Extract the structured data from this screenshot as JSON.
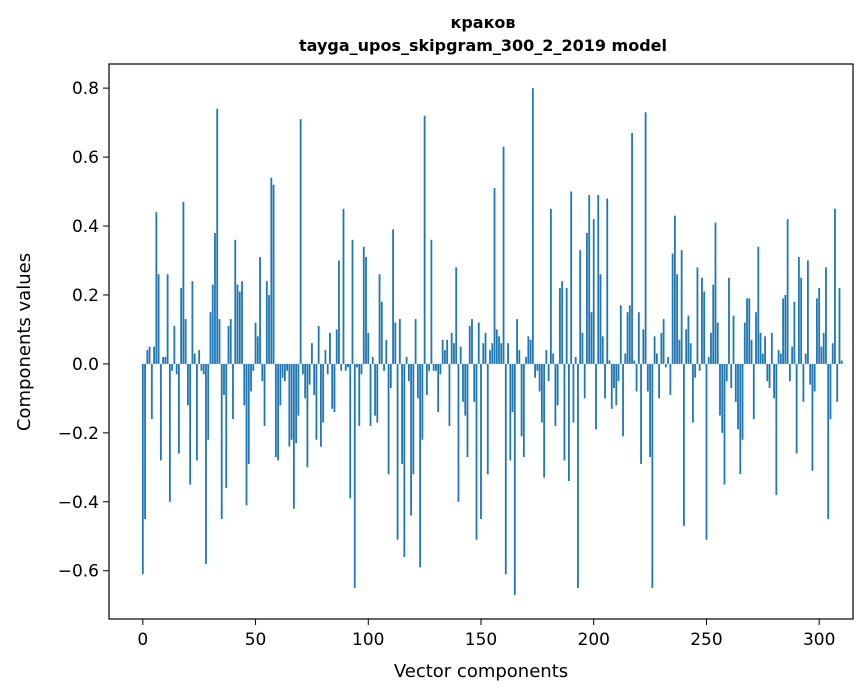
{
  "chart_data": {
    "type": "bar",
    "title": "краков",
    "subtitle": "tayga_upos_skipgram_300_2_2019 model",
    "xlabel": "Vector components",
    "ylabel": "Components values",
    "xlim": [
      -15,
      315
    ],
    "ylim": [
      -0.74,
      0.87
    ],
    "x_ticks": [
      0,
      50,
      100,
      150,
      200,
      250,
      300
    ],
    "y_ticks": [
      -0.6,
      -0.4,
      -0.2,
      0.0,
      0.2,
      0.4,
      0.6,
      0.8
    ],
    "y_tick_labels": [
      "−0.6",
      "−0.4",
      "−0.2",
      "0.0",
      "0.2",
      "0.4",
      "0.6",
      "0.8"
    ],
    "bar_color": "#1f77b4",
    "values": [
      -0.61,
      -0.45,
      0.04,
      0.05,
      -0.16,
      0.05,
      0.44,
      0.26,
      -0.28,
      0.02,
      0.02,
      0.26,
      -0.4,
      -0.02,
      0.11,
      -0.03,
      -0.26,
      0.22,
      0.47,
      0.13,
      -0.12,
      -0.35,
      0.24,
      0.03,
      -0.28,
      0.04,
      -0.02,
      -0.03,
      -0.58,
      -0.22,
      0.15,
      0.23,
      0.38,
      0.74,
      0.13,
      -0.45,
      -0.09,
      -0.36,
      0.11,
      0.13,
      -0.16,
      0.36,
      0.23,
      0.21,
      0.24,
      -0.12,
      -0.41,
      -0.29,
      -0.08,
      -0.02,
      0.12,
      0.08,
      0.31,
      -0.05,
      -0.18,
      0.24,
      0.2,
      0.54,
      0.52,
      -0.27,
      -0.28,
      -0.12,
      -0.04,
      -0.05,
      -0.02,
      -0.24,
      -0.22,
      -0.42,
      -0.23,
      -0.15,
      0.71,
      -0.03,
      -0.1,
      -0.3,
      -0.06,
      0.06,
      -0.09,
      -0.22,
      0.11,
      -0.24,
      -0.17,
      0.04,
      -0.03,
      0.09,
      -0.13,
      -0.14,
      0.1,
      0.3,
      -0.02,
      0.45,
      -0.02,
      -0.01,
      -0.39,
      0.36,
      -0.65,
      -0.01,
      -0.18,
      -0.03,
      0.34,
      0.31,
      0.09,
      -0.18,
      0.02,
      -0.15,
      -0.17,
      0.26,
      0.18,
      -0.02,
      0.07,
      -0.32,
      -0.07,
      0.39,
      0.12,
      -0.51,
      0.13,
      -0.29,
      -0.56,
      0.02,
      -0.05,
      -0.44,
      -0.32,
      0.13,
      -0.1,
      -0.59,
      -0.22,
      0.72,
      -0.09,
      -0.02,
      0.36,
      -0.02,
      -0.02,
      -0.14,
      -0.03,
      0.07,
      0.04,
      0.07,
      -0.18,
      0.09,
      0.06,
      0.28,
      -0.4,
      0.05,
      -0.11,
      -0.15,
      -0.27,
      0.11,
      0.13,
      -0.11,
      -0.51,
      0.12,
      -0.45,
      0.06,
      0.09,
      -0.32,
      0.04,
      0.06,
      0.51,
      0.1,
      0.08,
      0.06,
      0.63,
      -0.61,
      0.06,
      -0.28,
      -0.14,
      -0.67,
      0.13,
      0.04,
      -0.21,
      -0.27,
      0.02,
      0.08,
      0.07,
      0.8,
      -0.04,
      -0.02,
      -0.08,
      -0.17,
      -0.33,
      0.04,
      -0.05,
      0.45,
      0.03,
      -0.18,
      -0.12,
      0.22,
      0.24,
      -0.28,
      0.22,
      -0.34,
      0.5,
      -0.17,
      0.02,
      -0.65,
      0.33,
      0.09,
      -0.1,
      0.38,
      0.49,
      0.15,
      0.42,
      -0.19,
      0.49,
      0.26,
      0.08,
      -0.1,
      0.48,
      0.01,
      -0.13,
      -0.07,
      -0.12,
      -0.05,
      0.17,
      -0.21,
      0.03,
      0.15,
      0.17,
      0.67,
      0.01,
      -0.08,
      0.15,
      -0.29,
      0.1,
      0.73,
      -0.08,
      -0.27,
      -0.65,
      0.08,
      0.03,
      -0.1,
      0.09,
      0.13,
      -0.01,
      0.02,
      -0.09,
      0.32,
      0.43,
      0.26,
      0.07,
      0.33,
      -0.47,
      0.1,
      0.14,
      0.06,
      -0.17,
      -0.04,
      0.28,
      -0.02,
      0.25,
      0.21,
      -0.51,
      0.02,
      0.09,
      0.23,
      0.41,
      0.12,
      -0.15,
      -0.2,
      -0.35,
      -0.05,
      0.25,
      -0.07,
      0.14,
      -0.11,
      -0.19,
      -0.32,
      -0.22,
      0.12,
      0.19,
      0.19,
      0.07,
      -0.16,
      0.15,
      0.34,
      0.09,
      0.03,
      0.08,
      -0.05,
      -0.07,
      0.09,
      -0.1,
      -0.38,
      0.04,
      0.03,
      0.19,
      0.2,
      0.42,
      -0.05,
      0.05,
      0.18,
      -0.26,
      0.31,
      0.25,
      -0.11,
      0.03,
      0.3,
      -0.06,
      -0.31,
      -0.08,
      0.19,
      0.22,
      0.05,
      0.09,
      0.28,
      -0.45,
      -0.16,
      0.06,
      0.45,
      -0.11,
      0.22,
      0.01
    ]
  }
}
